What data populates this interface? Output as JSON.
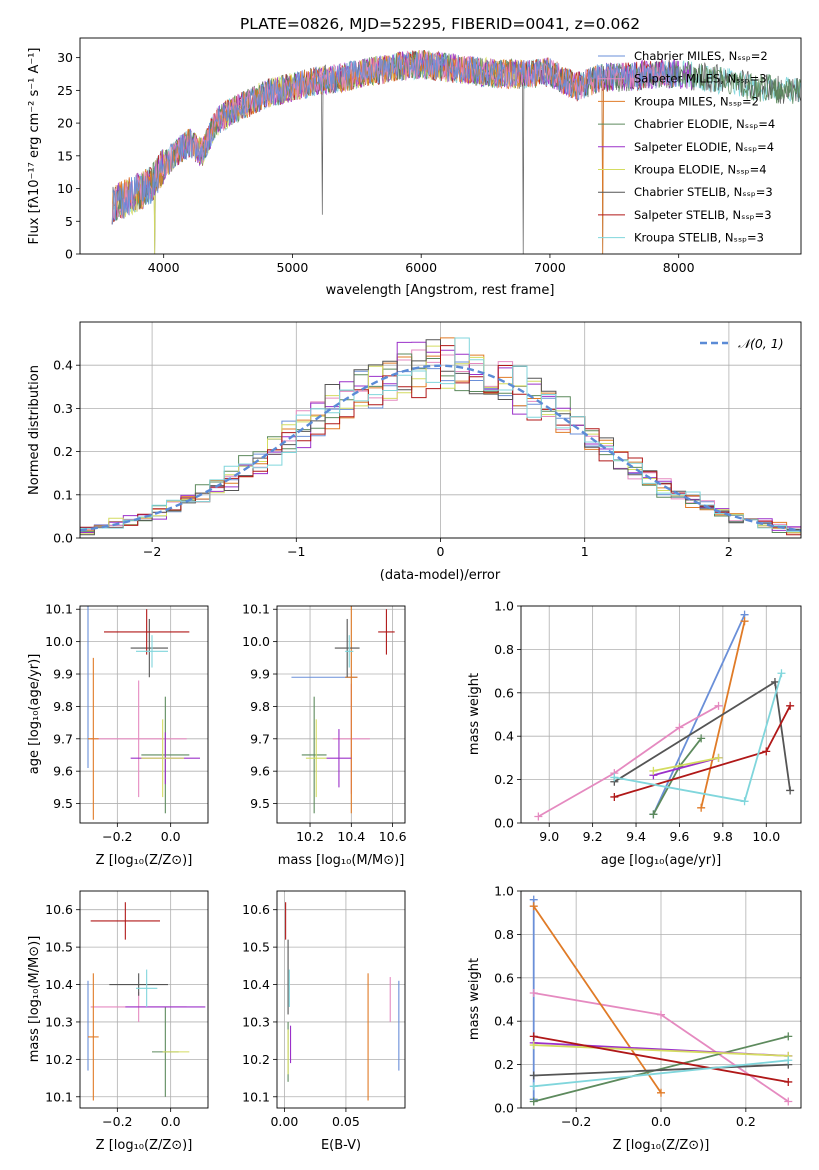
{
  "colors": [
    "#6a8fd8",
    "#e58ac0",
    "#e07b27",
    "#5d8a5d",
    "#9b30c9",
    "#d4dc60",
    "#555555",
    "#b01818",
    "#80d6dc"
  ],
  "chart_data": [
    {
      "id": "spectrum",
      "type": "line",
      "title": "PLATE=0826, MJD=52295, FIBERID=0041, z=0.062",
      "xlabel": "wavelength [Angstrom, rest frame]",
      "ylabel": "Flux [fλ10⁻¹⁷ erg cm⁻² s⁻¹ A⁻¹]",
      "xlim": [
        3350,
        8950
      ],
      "ylim": [
        0,
        33
      ],
      "xticks": [
        4000,
        5000,
        6000,
        7000,
        8000
      ],
      "yticks": [
        0,
        5,
        10,
        15,
        20,
        25,
        30
      ],
      "grid": false,
      "legend_position": "right",
      "legend": [
        "Chabrier MILES, Nₛₛₚ=2",
        "Salpeter MILES, Nₛₛₚ=3",
        "Kroupa MILES, Nₛₛₚ=2",
        "Chabrier ELODIE, Nₛₛₚ=4",
        "Salpeter ELODIE, Nₛₛₚ=4",
        "Kroupa ELODIE, Nₛₛₚ=4",
        "Chabrier STELIB, Nₛₛₚ=3",
        "Salpeter STELIB, Nₛₛₚ=3",
        "Kroupa STELIB, Nₛₛₚ=3"
      ],
      "continuum": {
        "x": [
          3600,
          3700,
          3800,
          3900,
          4000,
          4100,
          4200,
          4300,
          4400,
          4500,
          4600,
          4800,
          5000,
          5200,
          5400,
          5600,
          5800,
          6000,
          6200,
          6400,
          6600,
          6800,
          7000,
          7200,
          7400,
          7600,
          7800,
          8000,
          8200,
          8400,
          8600,
          8800
        ],
        "y": [
          7.5,
          8.5,
          9.5,
          10.5,
          13.5,
          15.5,
          17.0,
          15.5,
          20.0,
          21.5,
          22.5,
          24.5,
          25.5,
          26.5,
          27.0,
          27.8,
          28.6,
          29.0,
          28.5,
          28.0,
          27.5,
          27.5,
          27.8,
          25.5,
          27.0,
          27.0,
          27.5,
          27.5,
          27.0,
          26.5,
          25.5,
          25.0
        ]
      },
      "drops": [
        [
          3930,
          0
        ],
        [
          5230,
          6
        ],
        [
          6790,
          0
        ],
        [
          7410,
          0
        ]
      ]
    },
    {
      "id": "residuals",
      "type": "histogram",
      "xlabel": "(data-model)/error",
      "ylabel": "Normed distribution",
      "xlim": [
        -2.5,
        2.5
      ],
      "ylim": [
        0,
        0.5
      ],
      "xticks": [
        -2,
        -1,
        0,
        1,
        2
      ],
      "yticks": [
        0.0,
        0.1,
        0.2,
        0.3,
        0.4
      ],
      "grid": true,
      "legend_position": "top-right",
      "legend": [
        "𝒩(0, 1)"
      ],
      "bin_width": 0.1,
      "bin_start": -2.5
    },
    {
      "id": "age-vs-Z",
      "type": "errorbar",
      "xlabel": "Z [log₁₀(Z/Z⊙)]",
      "ylabel": "age  [log₁₀(age/yr)]",
      "xlim": [
        -0.34,
        0.14
      ],
      "ylim": [
        9.44,
        10.11
      ],
      "xticks": [
        -0.2,
        0.0
      ],
      "yticks": [
        9.5,
        9.6,
        9.7,
        9.8,
        9.9,
        10.0,
        10.1
      ],
      "grid": true,
      "points": [
        {
          "x": -0.31,
          "y": 9.89,
          "xerr": 0.0,
          "yerr": 0.28
        },
        {
          "x": -0.12,
          "y": 9.7,
          "xerr": 0.18,
          "yerr": 0.18
        },
        {
          "x": -0.29,
          "y": 9.7,
          "xerr": 0.02,
          "yerr": 0.25
        },
        {
          "x": -0.02,
          "y": 9.65,
          "xerr": 0.09,
          "yerr": 0.18
        },
        {
          "x": -0.02,
          "y": 9.64,
          "xerr": 0.13,
          "yerr": 0.08
        },
        {
          "x": -0.03,
          "y": 9.64,
          "xerr": 0.08,
          "yerr": 0.12
        },
        {
          "x": -0.08,
          "y": 9.98,
          "xerr": 0.07,
          "yerr": 0.09
        },
        {
          "x": -0.09,
          "y": 10.03,
          "xerr": 0.16,
          "yerr": 0.07
        },
        {
          "x": -0.07,
          "y": 9.97,
          "xerr": 0.06,
          "yerr": 0.05
        }
      ]
    },
    {
      "id": "age-vs-mass",
      "type": "errorbar",
      "xlabel": "mass [log₁₀(M/M⊙)]",
      "ylabel": "",
      "xlim": [
        10.04,
        10.66
      ],
      "ylim": [
        9.44,
        10.11
      ],
      "xticks": [
        10.2,
        10.4,
        10.6
      ],
      "yticks": [
        9.5,
        9.6,
        9.7,
        9.8,
        9.9,
        10.0,
        10.1
      ],
      "grid": true,
      "points": [
        {
          "x": 10.27,
          "y": 9.89,
          "xerr": 0.16,
          "yerr": 0.0
        },
        {
          "x": 10.4,
          "y": 9.7,
          "xerr": 0.09,
          "yerr": 0.17
        },
        {
          "x": 10.4,
          "y": 9.89,
          "xerr": 0.03,
          "yerr": 0.42
        },
        {
          "x": 10.22,
          "y": 9.65,
          "xerr": 0.06,
          "yerr": 0.18
        },
        {
          "x": 10.34,
          "y": 9.64,
          "xerr": 0.06,
          "yerr": 0.09
        },
        {
          "x": 10.23,
          "y": 9.64,
          "xerr": 0.05,
          "yerr": 0.12
        },
        {
          "x": 10.38,
          "y": 9.98,
          "xerr": 0.06,
          "yerr": 0.09
        },
        {
          "x": 10.57,
          "y": 10.03,
          "xerr": 0.04,
          "yerr": 0.07
        },
        {
          "x": 10.39,
          "y": 9.97,
          "xerr": 0.02,
          "yerr": 0.05
        }
      ]
    },
    {
      "id": "weight-vs-age",
      "type": "line",
      "xlabel": "age  [log₁₀(age/yr)]",
      "ylabel": "mass weight",
      "xlim": [
        8.87,
        10.16
      ],
      "ylim": [
        0,
        1.0
      ],
      "xticks": [
        9.0,
        9.2,
        9.4,
        9.6,
        9.8,
        10.0
      ],
      "yticks": [
        0.0,
        0.2,
        0.4,
        0.6,
        0.8,
        1.0
      ],
      "grid": true,
      "series": [
        {
          "x": [
            9.48,
            9.9
          ],
          "y": [
            0.04,
            0.96
          ]
        },
        {
          "x": [
            8.95,
            9.3,
            9.6,
            9.78
          ],
          "y": [
            0.03,
            0.23,
            0.44,
            0.54
          ]
        },
        {
          "x": [
            9.7,
            9.9
          ],
          "y": [
            0.07,
            0.93
          ]
        },
        {
          "x": [
            9.48,
            9.6,
            9.7
          ],
          "y": [
            0.04,
            0.26,
            0.39
          ]
        },
        {
          "x": [
            9.48,
            9.78
          ],
          "y": [
            0.22,
            0.3
          ]
        },
        {
          "x": [
            9.48,
            9.78
          ],
          "y": [
            0.24,
            0.3
          ]
        },
        {
          "x": [
            9.3,
            10.04,
            10.11
          ],
          "y": [
            0.19,
            0.65,
            0.15
          ]
        },
        {
          "x": [
            9.3,
            10.0,
            10.11
          ],
          "y": [
            0.12,
            0.33,
            0.54
          ]
        },
        {
          "x": [
            9.3,
            9.9,
            10.07
          ],
          "y": [
            0.21,
            0.1,
            0.69
          ]
        }
      ]
    },
    {
      "id": "mass-vs-Z",
      "type": "errorbar",
      "xlabel": "Z [log₁₀(Z/Z⊙)]",
      "ylabel": "mass [log₁₀(M/M⊙)]",
      "xlim": [
        -0.34,
        0.14
      ],
      "ylim": [
        10.07,
        10.65
      ],
      "xticks": [
        -0.2,
        0.0
      ],
      "yticks": [
        10.1,
        10.2,
        10.3,
        10.4,
        10.5,
        10.6
      ],
      "grid": true,
      "points": [
        {
          "x": -0.31,
          "y": 10.29,
          "xerr": 0.0,
          "yerr": 0.12
        },
        {
          "x": -0.12,
          "y": 10.34,
          "xerr": 0.18,
          "yerr": 0.04
        },
        {
          "x": -0.29,
          "y": 10.26,
          "xerr": 0.02,
          "yerr": 0.17
        },
        {
          "x": -0.02,
          "y": 10.22,
          "xerr": 0.05,
          "yerr": 0.12
        },
        {
          "x": -0.02,
          "y": 10.34,
          "xerr": 0.15,
          "yerr": 0.0
        },
        {
          "x": 0.02,
          "y": 10.22,
          "xerr": 0.05,
          "yerr": 0.0
        },
        {
          "x": -0.12,
          "y": 10.4,
          "xerr": 0.11,
          "yerr": 0.03
        },
        {
          "x": -0.17,
          "y": 10.57,
          "xerr": 0.13,
          "yerr": 0.05
        },
        {
          "x": -0.09,
          "y": 10.39,
          "xerr": 0.04,
          "yerr": 0.05
        }
      ]
    },
    {
      "id": "mass-vs-EBV",
      "type": "errorbar",
      "xlabel": "E(B-V)",
      "ylabel": "",
      "xlim": [
        -0.006,
        0.098
      ],
      "ylim": [
        10.07,
        10.65
      ],
      "xticks": [
        0.0,
        0.05
      ],
      "yticks": [
        10.1,
        10.2,
        10.3,
        10.4,
        10.5,
        10.6
      ],
      "grid": true,
      "points": [
        {
          "x": 0.093,
          "y": 10.29,
          "xerr": 0.0,
          "yerr": 0.12
        },
        {
          "x": 0.086,
          "y": 10.36,
          "xerr": 0.0,
          "yerr": 0.06
        },
        {
          "x": 0.068,
          "y": 10.26,
          "xerr": 0.0,
          "yerr": 0.17
        },
        {
          "x": 0.003,
          "y": 10.22,
          "xerr": 0.0,
          "yerr": 0.08
        },
        {
          "x": 0.005,
          "y": 10.24,
          "xerr": 0.0,
          "yerr": 0.05
        },
        {
          "x": 0.003,
          "y": 10.22,
          "xerr": 0.0,
          "yerr": 0.06
        },
        {
          "x": 0.003,
          "y": 10.42,
          "xerr": 0.0,
          "yerr": 0.1
        },
        {
          "x": 0.001,
          "y": 10.57,
          "xerr": 0.0,
          "yerr": 0.05
        },
        {
          "x": 0.004,
          "y": 10.39,
          "xerr": 0.0,
          "yerr": 0.05
        }
      ]
    },
    {
      "id": "weight-vs-Z",
      "type": "line",
      "xlabel": "Z [log₁₀(Z/Z⊙)]",
      "ylabel": "mass weight",
      "xlim": [
        -0.33,
        0.33
      ],
      "ylim": [
        0,
        1.0
      ],
      "xticks": [
        -0.2,
        0.0,
        0.2
      ],
      "yticks": [
        0.0,
        0.2,
        0.4,
        0.6,
        0.8,
        1.0
      ],
      "grid": true,
      "series": [
        {
          "x": [
            -0.3,
            -0.3
          ],
          "y": [
            0.04,
            0.96
          ]
        },
        {
          "x": [
            -0.3,
            0.0,
            0.3
          ],
          "y": [
            0.53,
            0.43,
            0.03
          ]
        },
        {
          "x": [
            -0.3,
            0.0
          ],
          "y": [
            0.93,
            0.07
          ]
        },
        {
          "x": [
            -0.3,
            0.3
          ],
          "y": [
            0.03,
            0.33
          ]
        },
        {
          "x": [
            -0.3,
            0.3
          ],
          "y": [
            0.3,
            0.24
          ]
        },
        {
          "x": [
            -0.3,
            0.3
          ],
          "y": [
            0.29,
            0.24
          ]
        },
        {
          "x": [
            -0.3,
            0.3
          ],
          "y": [
            0.15,
            0.2
          ]
        },
        {
          "x": [
            -0.3,
            0.3
          ],
          "y": [
            0.33,
            0.12
          ]
        },
        {
          "x": [
            -0.3,
            0.3
          ],
          "y": [
            0.1,
            0.22
          ]
        }
      ]
    }
  ]
}
